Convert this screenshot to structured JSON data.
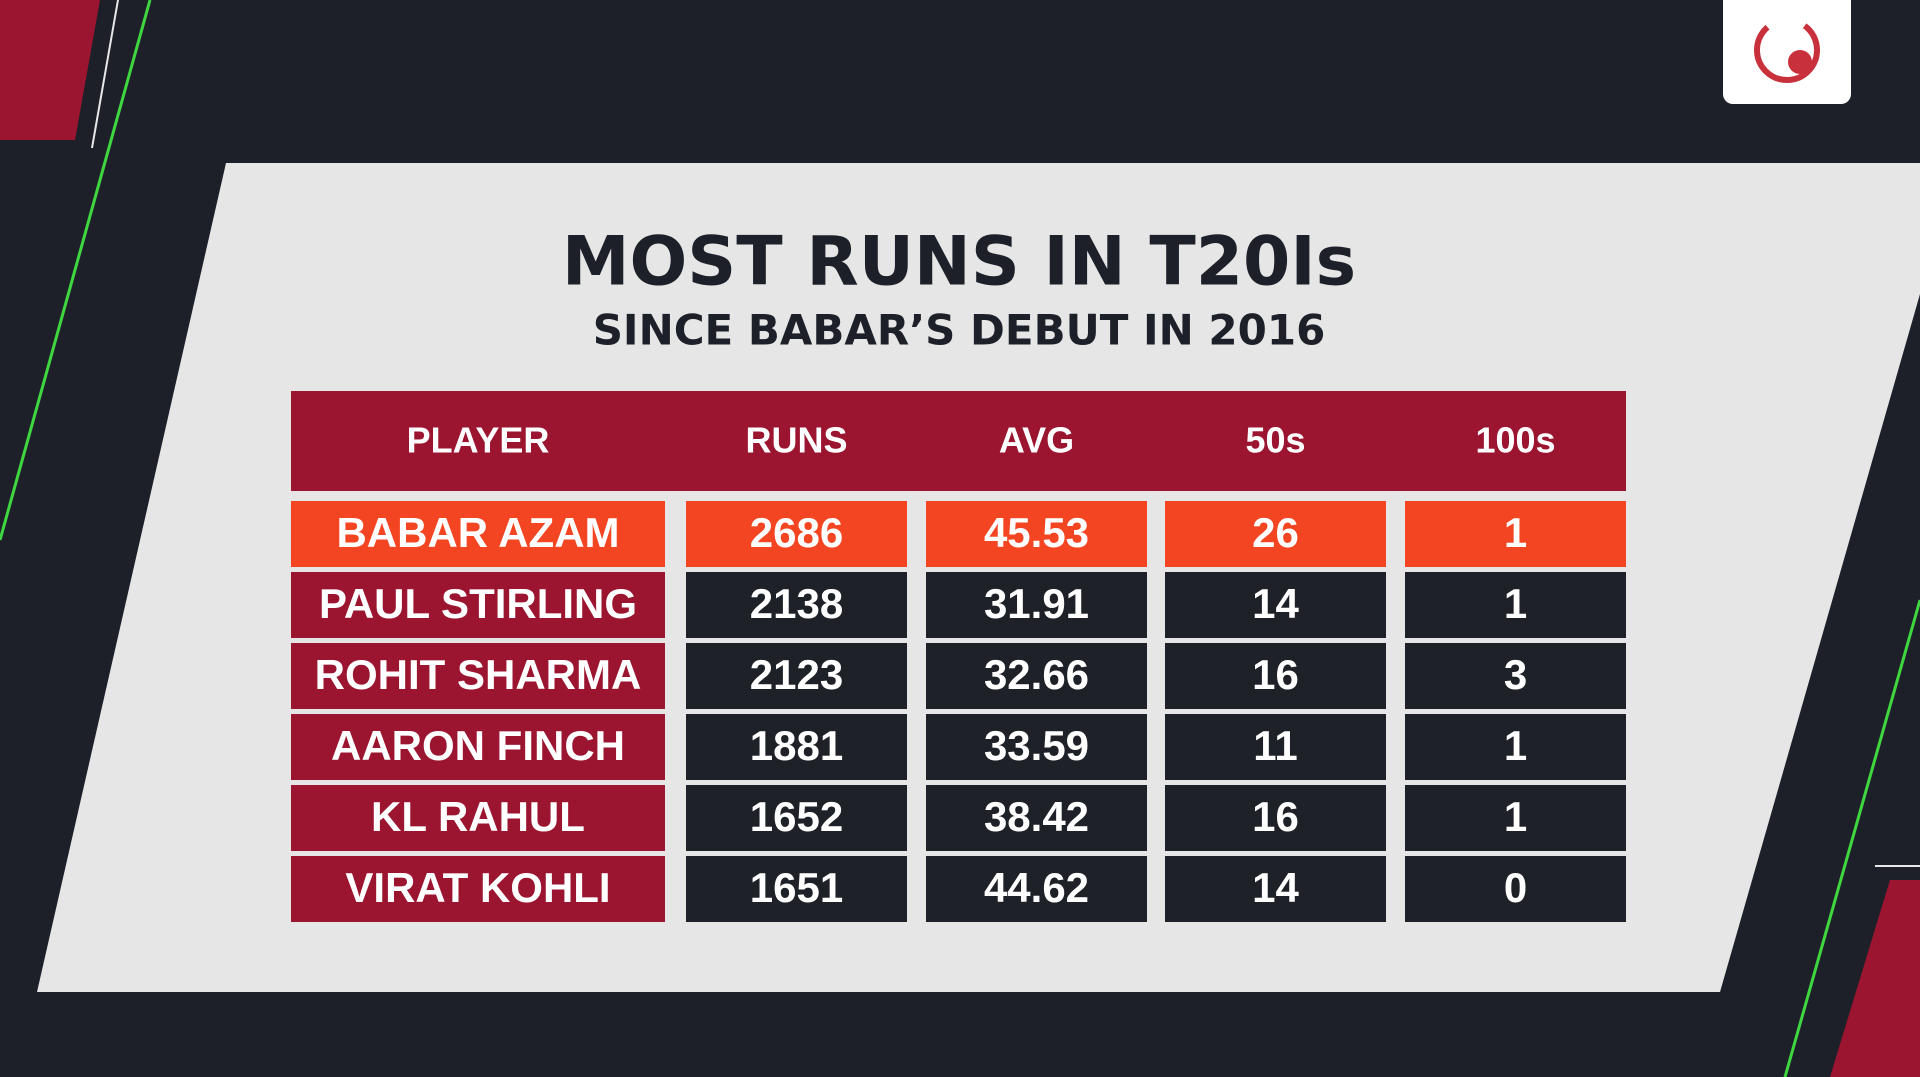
{
  "title": "MOST RUNS IN T20Is",
  "subtitle": "SINCE BABAR’S DEBUT IN 2016",
  "table": {
    "header": [
      "PLAYER",
      "RUNS",
      "AVG",
      "50s",
      "100s"
    ],
    "rows": [
      [
        "BABAR AZAM",
        2686,
        45.53,
        26,
        1
      ],
      [
        "PAUL STIRLING",
        2138,
        31.91,
        14,
        1
      ],
      [
        "ROHIT SHARMA",
        2123,
        32.66,
        16,
        3
      ],
      [
        "AARON FINCH",
        1881,
        33.59,
        11,
        1
      ],
      [
        "KL RAHUL",
        1652,
        38.42,
        16,
        1
      ],
      [
        "VIRAT KOHLI",
        1651,
        44.62,
        14,
        0
      ]
    ]
  }
}
